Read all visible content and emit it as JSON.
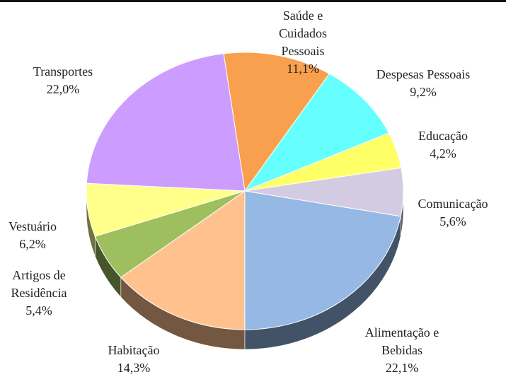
{
  "chart_data": {
    "type": "pie",
    "categories": [
      "Saúde e Cuidados Pessoais",
      "Despesas Pessoais",
      "Educação",
      "Comunicação",
      "Alimentação e Bebidas",
      "Habitação",
      "Artigos de Residência",
      "Vestuário",
      "Transportes"
    ],
    "values": [
      11.1,
      9.2,
      4.2,
      5.6,
      22.1,
      14.3,
      5.4,
      6.2,
      22.0
    ],
    "value_labels": [
      "11,1%",
      "9,2%",
      "4,2%",
      "5,6%",
      "22,1%",
      "14,3%",
      "5,4%",
      "6,2%",
      "22,0%"
    ],
    "colors": [
      "#f9a04f",
      "#66ffff",
      "#ffff66",
      "#d3cbe2",
      "#95b8e4",
      "#ffc28f",
      "#9dbf5d",
      "#ffff8a",
      "#cc9dff"
    ]
  }
}
